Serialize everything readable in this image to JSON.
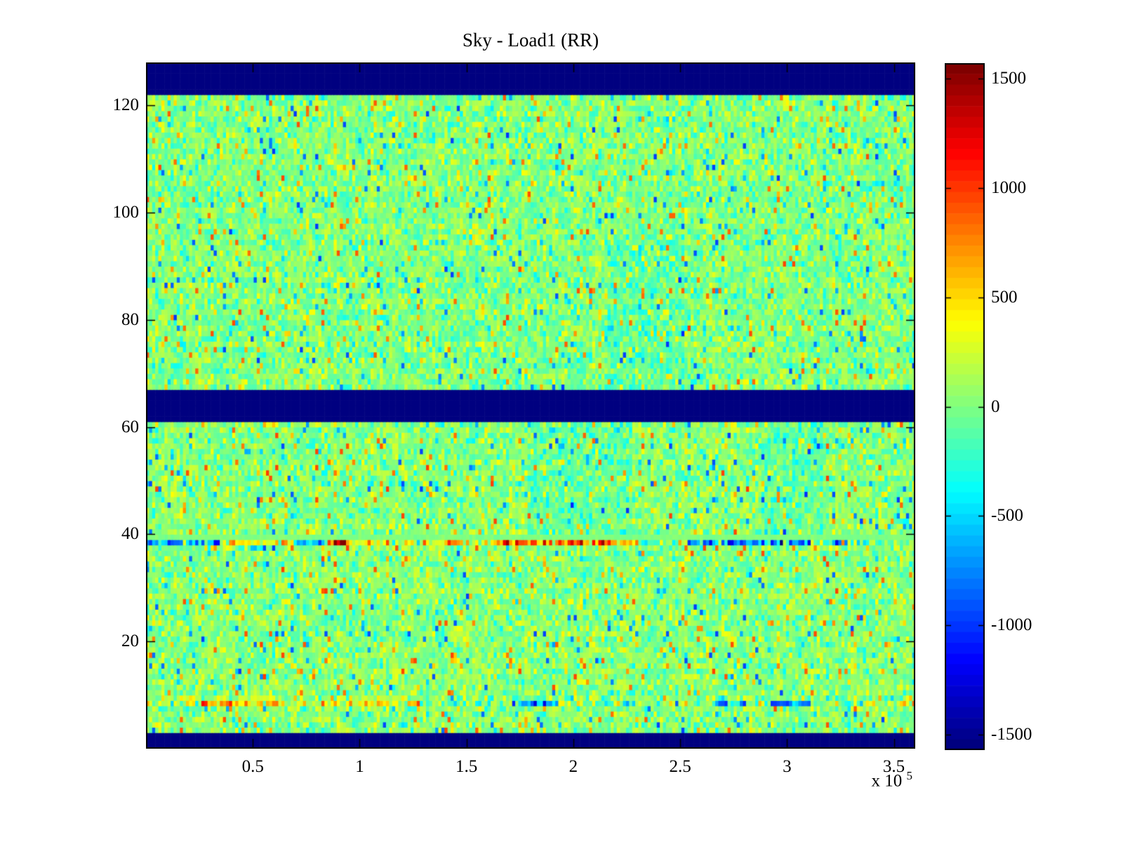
{
  "figure": {
    "title": "Sky - Load1 (RR)",
    "background_color": "#ffffff",
    "x_tick_labels": [
      "0.5",
      "1",
      "1.5",
      "2",
      "2.5",
      "3",
      "3.5"
    ],
    "y_tick_labels": [
      "20",
      "40",
      "60",
      "80",
      "100",
      "120"
    ],
    "x_multiplier": {
      "prefix": "x 10",
      "exponent": "5"
    },
    "colorbar": {
      "tick_labels": [
        "1500",
        "1000",
        "500",
        "0",
        "-500",
        "-1000",
        "-1500"
      ],
      "tick_values": [
        1500,
        1000,
        500,
        0,
        -500,
        -1000,
        -1500
      ],
      "levels": 64
    }
  },
  "chart_data": {
    "type": "heatmap",
    "title": "Sky - Load1 (RR)",
    "xlabel": "",
    "ylabel": "",
    "x_range": [
      0,
      360000
    ],
    "x_tick_values": [
      50000,
      100000,
      150000,
      200000,
      250000,
      300000,
      350000
    ],
    "y_range": [
      0,
      128
    ],
    "y_tick_values": [
      20,
      40,
      60,
      80,
      100,
      120
    ],
    "color_range": [
      -1570,
      1570
    ],
    "colormap": "jet",
    "grid": false,
    "legend": "colorbar-right",
    "rows": 128,
    "cols": 250,
    "solid_value": -1570,
    "solid_bands": [
      {
        "rows": [
          1,
          3
        ],
        "note": "bottom dark-blue blanked band"
      },
      {
        "rows": [
          62,
          67
        ],
        "note": "middle dark-blue blanked band"
      },
      {
        "rows": [
          123,
          128
        ],
        "note": "top dark-blue blanked band"
      }
    ],
    "noise": {
      "mean": 25,
      "sigma": 175,
      "outlier_prob": 0.055,
      "outlier_min": 450,
      "outlier_max": 1000,
      "positive_outlier_frac": 0.55
    },
    "special_rows": [
      {
        "row": 40,
        "mean": 0,
        "sigma": 25,
        "note": "pale uniform green row"
      },
      {
        "row": 39,
        "sigma": 380,
        "note": "strong RFI stripe",
        "segments": [
          {
            "f": [
              0.0,
              0.1
            ],
            "bias": -550
          },
          {
            "f": [
              0.1,
              0.19
            ],
            "bias": 450
          },
          {
            "f": [
              0.19,
              0.235
            ],
            "bias": -400
          },
          {
            "f": [
              0.235,
              0.26
            ],
            "bias": 1300
          },
          {
            "f": [
              0.26,
              0.45
            ],
            "bias": 350
          },
          {
            "f": [
              0.45,
              0.64
            ],
            "bias": 750
          },
          {
            "f": [
              0.64,
              0.7
            ],
            "bias": 0
          },
          {
            "f": [
              0.7,
              0.86
            ],
            "bias": -650
          },
          {
            "f": [
              0.86,
              0.94
            ],
            "bias": -300
          },
          {
            "f": [
              0.94,
              1.0
            ],
            "bias": 150
          }
        ]
      },
      {
        "row": 10,
        "sigma": 220,
        "segments": [
          {
            "f": [
              0.0,
              0.35
            ],
            "bias": 170
          },
          {
            "f": [
              0.35,
              1.0
            ],
            "bias": 20
          }
        ]
      },
      {
        "row": 9,
        "sigma": 300,
        "note": "lower stripe with red and blue blobs",
        "segments": [
          {
            "f": [
              0.0,
              0.07
            ],
            "bias": 250
          },
          {
            "f": [
              0.07,
              0.12
            ],
            "bias": 700
          },
          {
            "f": [
              0.12,
              0.35
            ],
            "bias": 300
          },
          {
            "f": [
              0.35,
              0.485
            ],
            "bias": 0
          },
          {
            "f": [
              0.485,
              0.535
            ],
            "bias": -700
          },
          {
            "f": [
              0.535,
              0.74
            ],
            "bias": 50
          },
          {
            "f": [
              0.74,
              0.78
            ],
            "bias": -600
          },
          {
            "f": [
              0.78,
              0.81
            ],
            "bias": 0
          },
          {
            "f": [
              0.81,
              0.865
            ],
            "bias": -900
          },
          {
            "f": [
              0.865,
              1.0
            ],
            "bias": 100
          }
        ]
      }
    ],
    "patches": [
      {
        "rows": [
          41,
          61
        ],
        "f": [
          0.5,
          0.63
        ],
        "bias": -110
      },
      {
        "rows": [
          41,
          61
        ],
        "f": [
          0.8,
          0.88
        ],
        "bias": -110
      },
      {
        "rows": [
          68,
          96
        ],
        "f": [
          0.6,
          0.7
        ],
        "bias": -90
      },
      {
        "rows": [
          68,
          122
        ],
        "f": [
          0.0,
          1.0
        ],
        "bias": -20
      }
    ],
    "seed": 20240613
  }
}
